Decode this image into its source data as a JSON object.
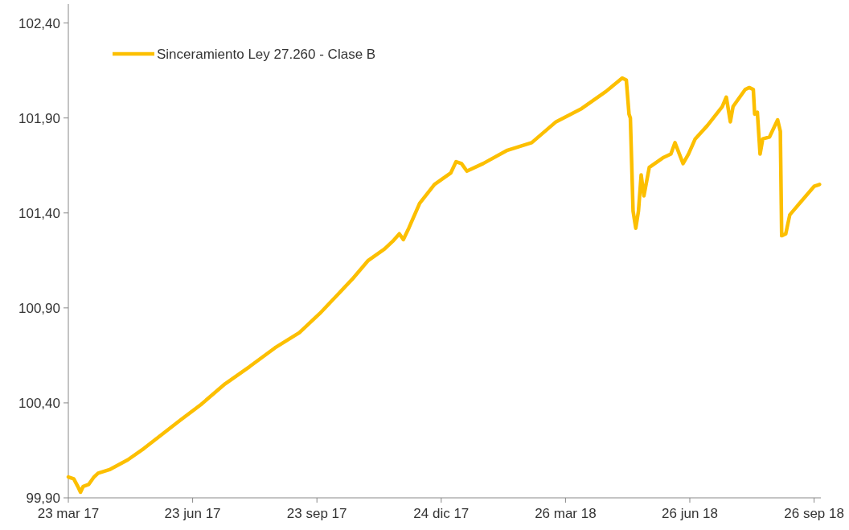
{
  "chart_data": {
    "type": "line",
    "legend": "top left",
    "line_style": "solid",
    "grid": false,
    "xlim": [
      "2017-03-23",
      "2018-10-01"
    ],
    "xticks": [
      {
        "value": "2017-03-23",
        "label": "23 mar 17"
      },
      {
        "value": "2017-06-23",
        "label": "23 jun 17"
      },
      {
        "value": "2017-09-23",
        "label": "23 sep 17"
      },
      {
        "value": "2017-12-24",
        "label": "24 dic 17"
      },
      {
        "value": "2018-03-26",
        "label": "26 mar 18"
      },
      {
        "value": "2018-06-26",
        "label": "26 jun 18"
      },
      {
        "value": "2018-09-26",
        "label": "26 sep 18"
      }
    ],
    "ylim": [
      99.9,
      102.5
    ],
    "yticks": [
      {
        "value": 99.9,
        "label": "99,90"
      },
      {
        "value": 100.4,
        "label": "100,40"
      },
      {
        "value": 100.9,
        "label": "100,90"
      },
      {
        "value": 101.4,
        "label": "101,40"
      },
      {
        "value": 101.9,
        "label": "101,90"
      },
      {
        "value": 102.4,
        "label": "102,40"
      }
    ],
    "x": [
      "2017-03-23",
      "2017-03-27",
      "2017-03-30",
      "2017-04-01",
      "2017-04-03",
      "2017-04-07",
      "2017-04-11",
      "2017-04-14",
      "2017-04-23",
      "2017-05-06",
      "2017-05-18",
      "2017-05-27",
      "2017-06-14",
      "2017-06-29",
      "2017-07-17",
      "2017-08-04",
      "2017-08-23",
      "2017-09-10",
      "2017-09-25",
      "2017-10-07",
      "2017-10-19",
      "2017-10-31",
      "2017-11-12",
      "2017-11-18",
      "2017-11-23",
      "2017-11-26",
      "2017-11-30",
      "2017-12-08",
      "2017-12-19",
      "2017-12-31",
      "2018-01-04",
      "2018-01-08",
      "2018-01-12",
      "2018-01-24",
      "2018-02-11",
      "2018-03-01",
      "2018-03-19",
      "2018-04-07",
      "2018-04-25",
      "2018-05-07",
      "2018-05-10",
      "2018-05-12",
      "2018-05-13",
      "2018-05-15",
      "2018-05-17",
      "2018-05-19",
      "2018-05-21",
      "2018-05-23",
      "2018-05-27",
      "2018-06-06",
      "2018-06-12",
      "2018-06-15",
      "2018-06-21",
      "2018-06-25",
      "2018-06-30",
      "2018-07-09",
      "2018-07-20",
      "2018-07-23",
      "2018-07-26",
      "2018-07-28",
      "2018-08-06",
      "2018-08-09",
      "2018-08-12",
      "2018-08-13",
      "2018-08-15",
      "2018-08-17",
      "2018-08-19",
      "2018-08-24",
      "2018-08-30",
      "2018-09-01",
      "2018-09-02",
      "2018-09-05",
      "2018-09-08",
      "2018-09-14",
      "2018-09-20",
      "2018-09-26",
      "2018-09-30"
    ],
    "series": [
      {
        "name": "Sinceramiento Ley 27.260 - Clase B",
        "color": "#fcbf00",
        "values": [
          100.01,
          100.0,
          99.96,
          99.93,
          99.96,
          99.97,
          100.01,
          100.03,
          100.05,
          100.1,
          100.16,
          100.21,
          100.31,
          100.39,
          100.5,
          100.59,
          100.69,
          100.77,
          100.87,
          100.96,
          101.05,
          101.15,
          101.21,
          101.25,
          101.29,
          101.26,
          101.32,
          101.45,
          101.55,
          101.61,
          101.67,
          101.66,
          101.62,
          101.66,
          101.73,
          101.77,
          101.88,
          101.95,
          102.04,
          102.11,
          102.1,
          101.92,
          101.9,
          101.41,
          101.32,
          101.41,
          101.6,
          101.49,
          101.64,
          101.69,
          101.71,
          101.77,
          101.66,
          101.71,
          101.79,
          101.86,
          101.96,
          102.01,
          101.88,
          101.96,
          102.05,
          102.06,
          102.05,
          101.92,
          101.93,
          101.71,
          101.79,
          101.8,
          101.89,
          101.83,
          101.28,
          101.29,
          101.39,
          101.44,
          101.49,
          101.54,
          101.55
        ]
      }
    ]
  }
}
